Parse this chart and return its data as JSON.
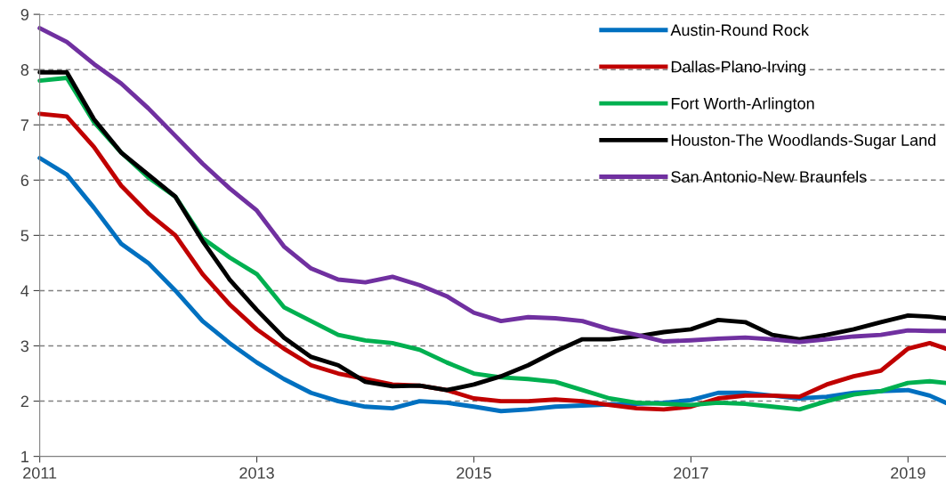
{
  "chart_data": {
    "type": "line",
    "x": [
      2011,
      2011.25,
      2011.5,
      2011.75,
      2012,
      2012.25,
      2012.5,
      2012.75,
      2013,
      2013.25,
      2013.5,
      2013.75,
      2014,
      2014.25,
      2014.5,
      2014.75,
      2015,
      2015.25,
      2015.5,
      2015.75,
      2016,
      2016.25,
      2016.5,
      2016.75,
      2017,
      2017.25,
      2017.5,
      2017.75,
      2018,
      2018.25,
      2018.5,
      2018.75,
      2019,
      2019.2,
      2019.35
    ],
    "series": [
      {
        "name": "Austin-Round Rock",
        "color": "#0070c0",
        "values": [
          6.4,
          6.1,
          5.5,
          4.85,
          4.5,
          4.0,
          3.45,
          3.05,
          2.7,
          2.4,
          2.15,
          2.0,
          1.9,
          1.87,
          2.0,
          1.97,
          1.9,
          1.82,
          1.85,
          1.9,
          1.92,
          1.94,
          1.95,
          1.97,
          2.02,
          2.15,
          2.15,
          2.1,
          2.05,
          2.08,
          2.15,
          2.18,
          2.2,
          2.1,
          1.97
        ]
      },
      {
        "name": "Dallas-Plano-Irving",
        "color": "#c00000",
        "values": [
          7.2,
          7.15,
          6.6,
          5.9,
          5.4,
          5.0,
          4.3,
          3.75,
          3.3,
          2.95,
          2.65,
          2.5,
          2.4,
          2.3,
          2.28,
          2.2,
          2.05,
          2.0,
          2.0,
          2.03,
          2.0,
          1.93,
          1.87,
          1.85,
          1.9,
          2.05,
          2.1,
          2.1,
          2.08,
          2.3,
          2.45,
          2.55,
          2.95,
          3.05,
          2.95
        ]
      },
      {
        "name": "Fort Worth-Arlington",
        "color": "#00b050",
        "values": [
          7.8,
          7.85,
          7.05,
          6.5,
          6.05,
          5.7,
          4.95,
          4.6,
          4.3,
          3.7,
          3.45,
          3.2,
          3.1,
          3.05,
          2.93,
          2.7,
          2.5,
          2.43,
          2.4,
          2.35,
          2.2,
          2.05,
          1.97,
          1.95,
          1.93,
          1.97,
          1.95,
          1.9,
          1.85,
          2.0,
          2.12,
          2.18,
          2.33,
          2.36,
          2.33
        ]
      },
      {
        "name": "Houston-The Woodlands-Sugar Land",
        "color": "#000000",
        "values": [
          7.95,
          7.95,
          7.1,
          6.5,
          6.1,
          5.7,
          4.9,
          4.2,
          3.65,
          3.15,
          2.8,
          2.65,
          2.35,
          2.27,
          2.28,
          2.2,
          2.3,
          2.45,
          2.65,
          2.9,
          3.12,
          3.12,
          3.17,
          3.25,
          3.3,
          3.47,
          3.43,
          3.2,
          3.12,
          3.2,
          3.3,
          3.43,
          3.55,
          3.53,
          3.5
        ]
      },
      {
        "name": "San Antonio-New Braunfels",
        "color": "#7030a0",
        "values": [
          8.75,
          8.5,
          8.1,
          7.75,
          7.3,
          6.8,
          6.3,
          5.85,
          5.45,
          4.8,
          4.4,
          4.2,
          4.15,
          4.25,
          4.1,
          3.9,
          3.6,
          3.45,
          3.52,
          3.5,
          3.45,
          3.3,
          3.2,
          3.08,
          3.1,
          3.13,
          3.15,
          3.12,
          3.07,
          3.12,
          3.17,
          3.2,
          3.28,
          3.27,
          3.27
        ]
      }
    ],
    "xlim": [
      2011,
      2019.35
    ],
    "xticks": [
      2011,
      2013,
      2015,
      2017,
      2019
    ],
    "ylim": [
      1,
      9
    ],
    "yticks": [
      1,
      2,
      3,
      4,
      5,
      6,
      7,
      8,
      9
    ],
    "grid": "y",
    "legend": "top right"
  }
}
